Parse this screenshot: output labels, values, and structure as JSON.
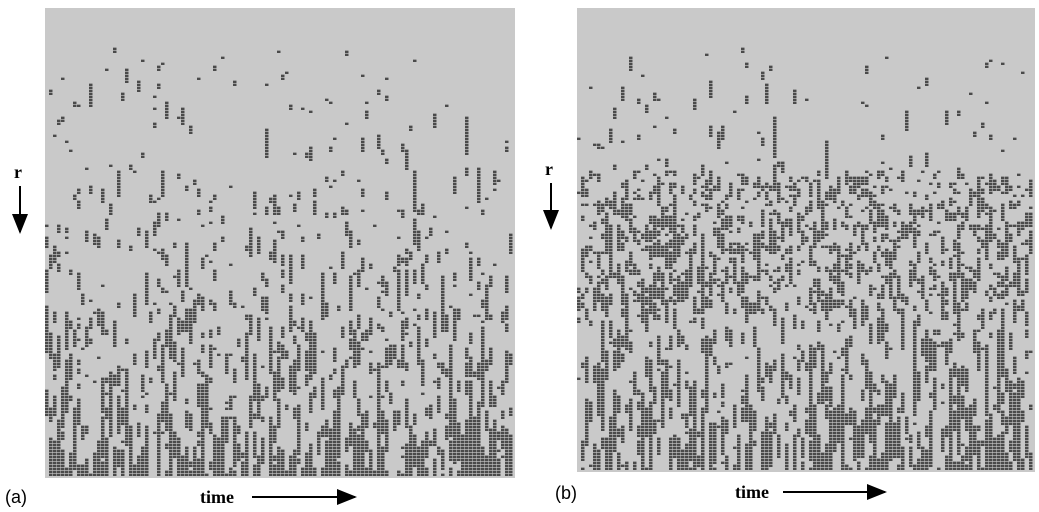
{
  "panels": [
    {
      "label": "(a)",
      "x_label": "time",
      "y_label": "r"
    },
    {
      "label": "(b)",
      "x_label": "time",
      "y_label": "r"
    }
  ]
}
